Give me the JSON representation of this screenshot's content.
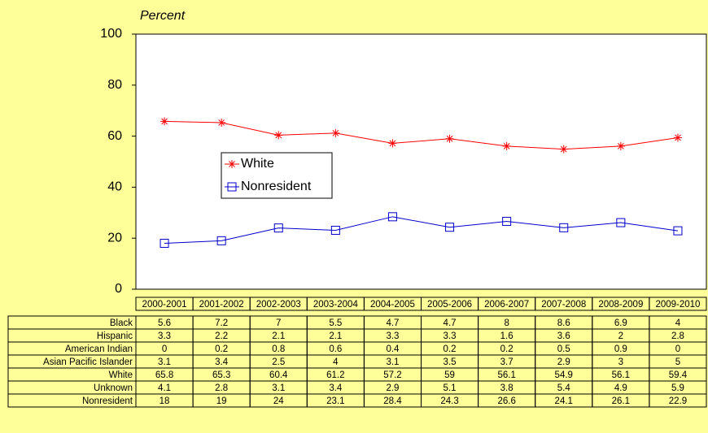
{
  "chart_data": {
    "type": "line",
    "y_label": "Percent",
    "categories": [
      "2000-2001",
      "2001-2002",
      "2002-2003",
      "2003-2004",
      "2004-2005",
      "2005-2006",
      "2006-2007",
      "2007-2008",
      "2008-2009",
      "2009-2010"
    ],
    "series": [
      {
        "name": "Black",
        "values": [
          5.6,
          7.2,
          7,
          5.5,
          4.7,
          4.7,
          8,
          8.6,
          6.9,
          4
        ]
      },
      {
        "name": "Hispanic",
        "values": [
          3.3,
          2.2,
          2.1,
          2.1,
          3.3,
          3.3,
          1.6,
          3.6,
          2,
          2.8
        ]
      },
      {
        "name": "American Indian",
        "values": [
          0,
          0.2,
          0.8,
          0.6,
          0.4,
          0.2,
          0.2,
          0.5,
          0.9,
          0
        ]
      },
      {
        "name": "Asian Pacific Islander",
        "values": [
          3.1,
          3.4,
          2.5,
          4,
          3.1,
          3.5,
          3.7,
          2.9,
          3,
          5
        ]
      },
      {
        "name": "White",
        "color": "#ff0000",
        "marker": "star",
        "values": [
          65.8,
          65.3,
          60.4,
          61.2,
          57.2,
          59,
          56.1,
          54.9,
          56.1,
          59.4
        ]
      },
      {
        "name": "Unknown",
        "values": [
          4.1,
          2.8,
          3.1,
          3.4,
          2.9,
          5.1,
          3.8,
          5.4,
          4.9,
          5.9
        ]
      },
      {
        "name": "Nonresident",
        "color": "#0000cc",
        "marker": "square",
        "values": [
          18,
          19,
          24,
          23.1,
          28.4,
          24.3,
          26.6,
          24.1,
          26.1,
          22.9
        ]
      }
    ],
    "ylim": [
      0,
      100
    ],
    "yticks": [
      0,
      20,
      40,
      60,
      80,
      100
    ]
  }
}
